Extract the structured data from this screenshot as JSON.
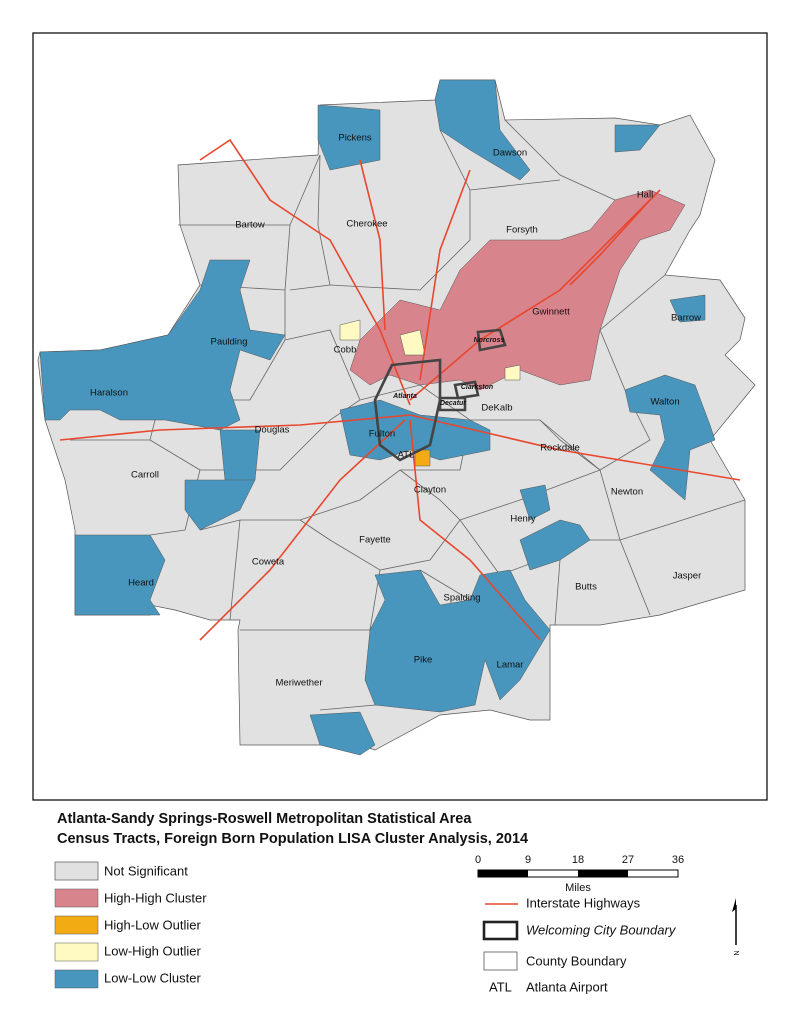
{
  "title": [
    "Atlanta-Sandy Springs-Roswell Metropolitan Statistical Area",
    "Census Tracts, Foreign Born Population LISA Cluster Analysis, 2014"
  ],
  "counties": [
    "Pickens",
    "Dawson",
    "Hall",
    "Bartow",
    "Cherokee",
    "Forsyth",
    "Barrow",
    "Gwinnett",
    "Paulding",
    "Cobb",
    "Haralson",
    "Walton",
    "DeKalb",
    "Douglas",
    "Fulton",
    "Rockdale",
    "Carroll",
    "Clayton",
    "Newton",
    "Henry",
    "Fayette",
    "Coweta",
    "Heard",
    "Butts",
    "Jasper",
    "Spalding",
    "Pike",
    "Lamar",
    "Meriwether"
  ],
  "cities": [
    "Norcross",
    "Clarkston",
    "Atlanta",
    "Decatur"
  ],
  "airport": "ATL",
  "legend": {
    "classes": [
      "Not Significant",
      "High-High Cluster",
      "High-Low Outlier",
      "Low-High Outlier",
      "Low-Low Cluster"
    ],
    "lines": [
      "Interstate Highways",
      "Welcoming City Boundary",
      "County Boundary",
      "Atlanta Airport"
    ]
  },
  "scale": {
    "ticks": [
      0,
      9,
      18,
      27,
      36
    ],
    "unit": "Miles"
  },
  "north": "N"
}
